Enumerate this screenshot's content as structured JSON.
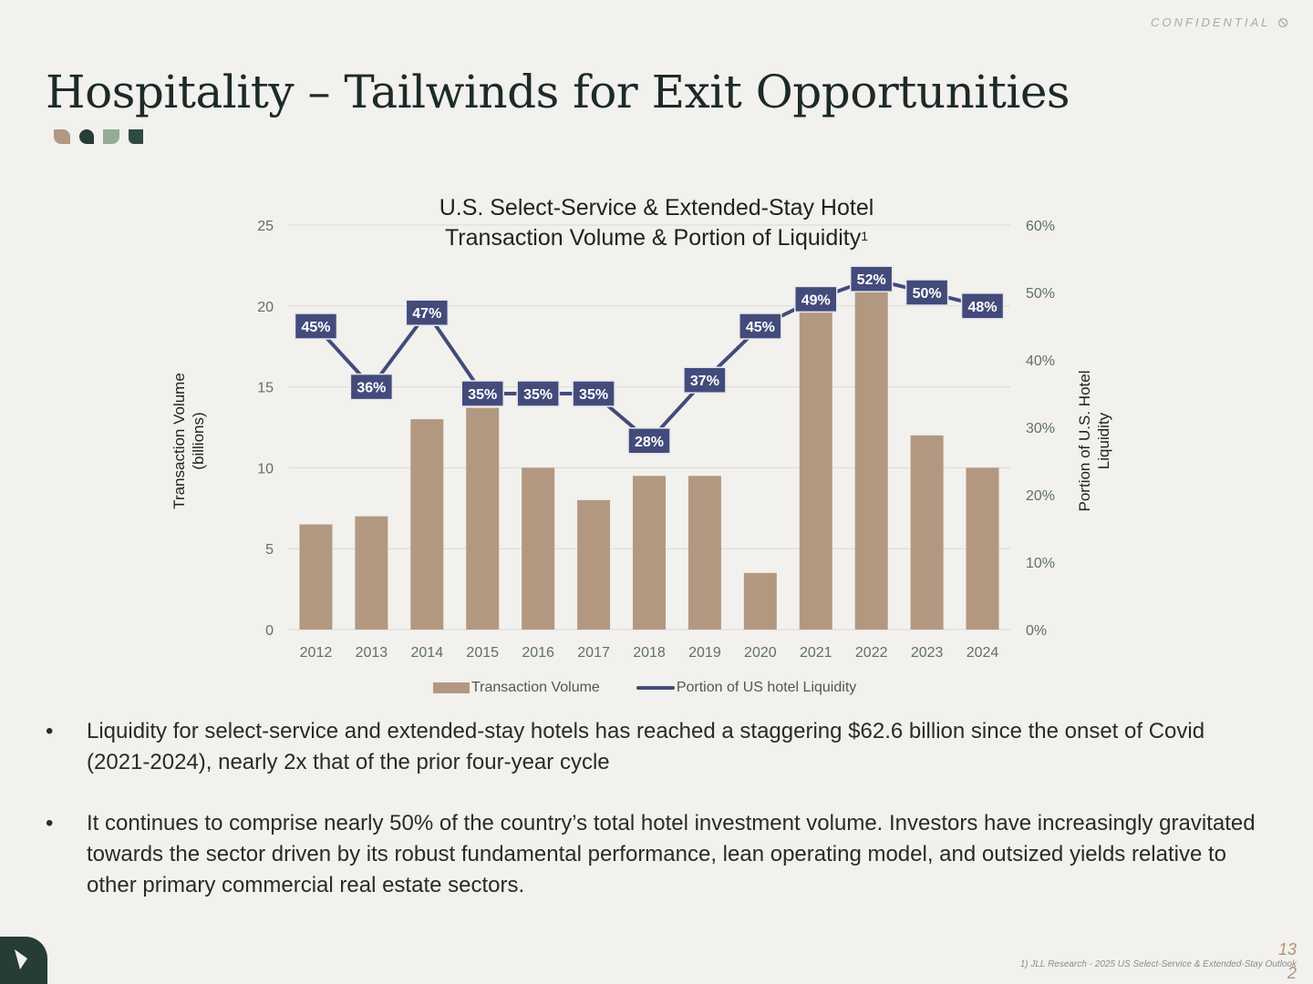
{
  "header": {
    "confidential": "CONFIDENTIAL",
    "title": "Hospitality – Tailwinds for Exit Opportunities"
  },
  "brand_colors": {
    "leaf_1": "#b39881",
    "leaf_2": "#253d35",
    "leaf_3": "#93ab97",
    "leaf_4": "#2d4b42",
    "bar": "#b39881",
    "line": "#434b7b"
  },
  "chart_data": {
    "type": "bar",
    "title_line1": "U.S. Select-Service & Extended-Stay Hotel",
    "title_line2": "Transaction Volume & Portion of Liquidity",
    "title_superscript": "1",
    "categories": [
      "2012",
      "2013",
      "2014",
      "2015",
      "2016",
      "2017",
      "2018",
      "2019",
      "2020",
      "2021",
      "2022",
      "2023",
      "2024"
    ],
    "series": [
      {
        "name": "Transaction Volume",
        "type": "bar",
        "axis": "left",
        "values": [
          6.5,
          7,
          13,
          13.7,
          10,
          8,
          9.5,
          9.5,
          3.5,
          19.6,
          21.2,
          12,
          10
        ]
      },
      {
        "name": "Portion of US hotel Liquidity",
        "type": "line",
        "axis": "right",
        "values": [
          45,
          36,
          47,
          35,
          35,
          35,
          28,
          37,
          45,
          49,
          52,
          50,
          48
        ],
        "labels": [
          "45%",
          "36%",
          "47%",
          "35%",
          "35%",
          "35%",
          "28%",
          "37%",
          "45%",
          "49%",
          "52%",
          "50%",
          "48%"
        ]
      }
    ],
    "ylabel_left_line1": "Transaction Volume",
    "ylabel_left_line2": "(billions)",
    "ylabel_right_line1": "Portion of U.S. Hotel",
    "ylabel_right_line2": "Liquidity",
    "ylim_left": [
      0,
      25
    ],
    "ylim_right": [
      0,
      60
    ],
    "left_ticks": [
      "0",
      "5",
      "10",
      "15",
      "20",
      "25"
    ],
    "right_ticks": [
      "0%",
      "10%",
      "20%",
      "30%",
      "40%",
      "50%",
      "60%"
    ],
    "grid": true,
    "legend_position": "bottom"
  },
  "bullets": [
    "Liquidity for select-service and extended-stay hotels has reached a staggering $62.6 billion since the onset of Covid (2021-2024), nearly 2x that of the prior four-year cycle",
    "It continues to comprise nearly 50% of the country’s total hotel investment volume. Investors have increasingly gravitated towards the sector driven by its robust fundamental performance, lean operating model, and outsized yields relative to other primary commercial real estate sectors."
  ],
  "footer": {
    "footnote": "1) JLL Research -  2025 US Select-Service & Extended-Stay Outlook",
    "page_number_top": "13",
    "page_number_bottom": "2"
  }
}
